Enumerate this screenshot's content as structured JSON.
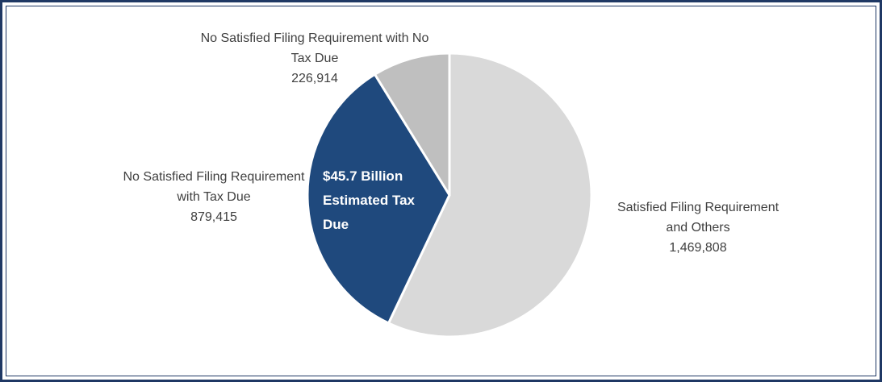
{
  "chart_data": {
    "type": "pie",
    "categories": [
      "Satisfied Filing Requirement and Others",
      "No Satisfied Filing Requirement with Tax Due",
      "No Satisfied Filing Requirement with No Tax Due"
    ],
    "values": [
      1469808,
      879415,
      226914
    ],
    "value_labels": [
      "1,469,808",
      "879,415",
      "226,914"
    ],
    "colors": [
      "#d9d9d9",
      "#1f497d",
      "#bfbfbf"
    ],
    "annotation": "$45.7 Billion Estimated Tax Due"
  }
}
